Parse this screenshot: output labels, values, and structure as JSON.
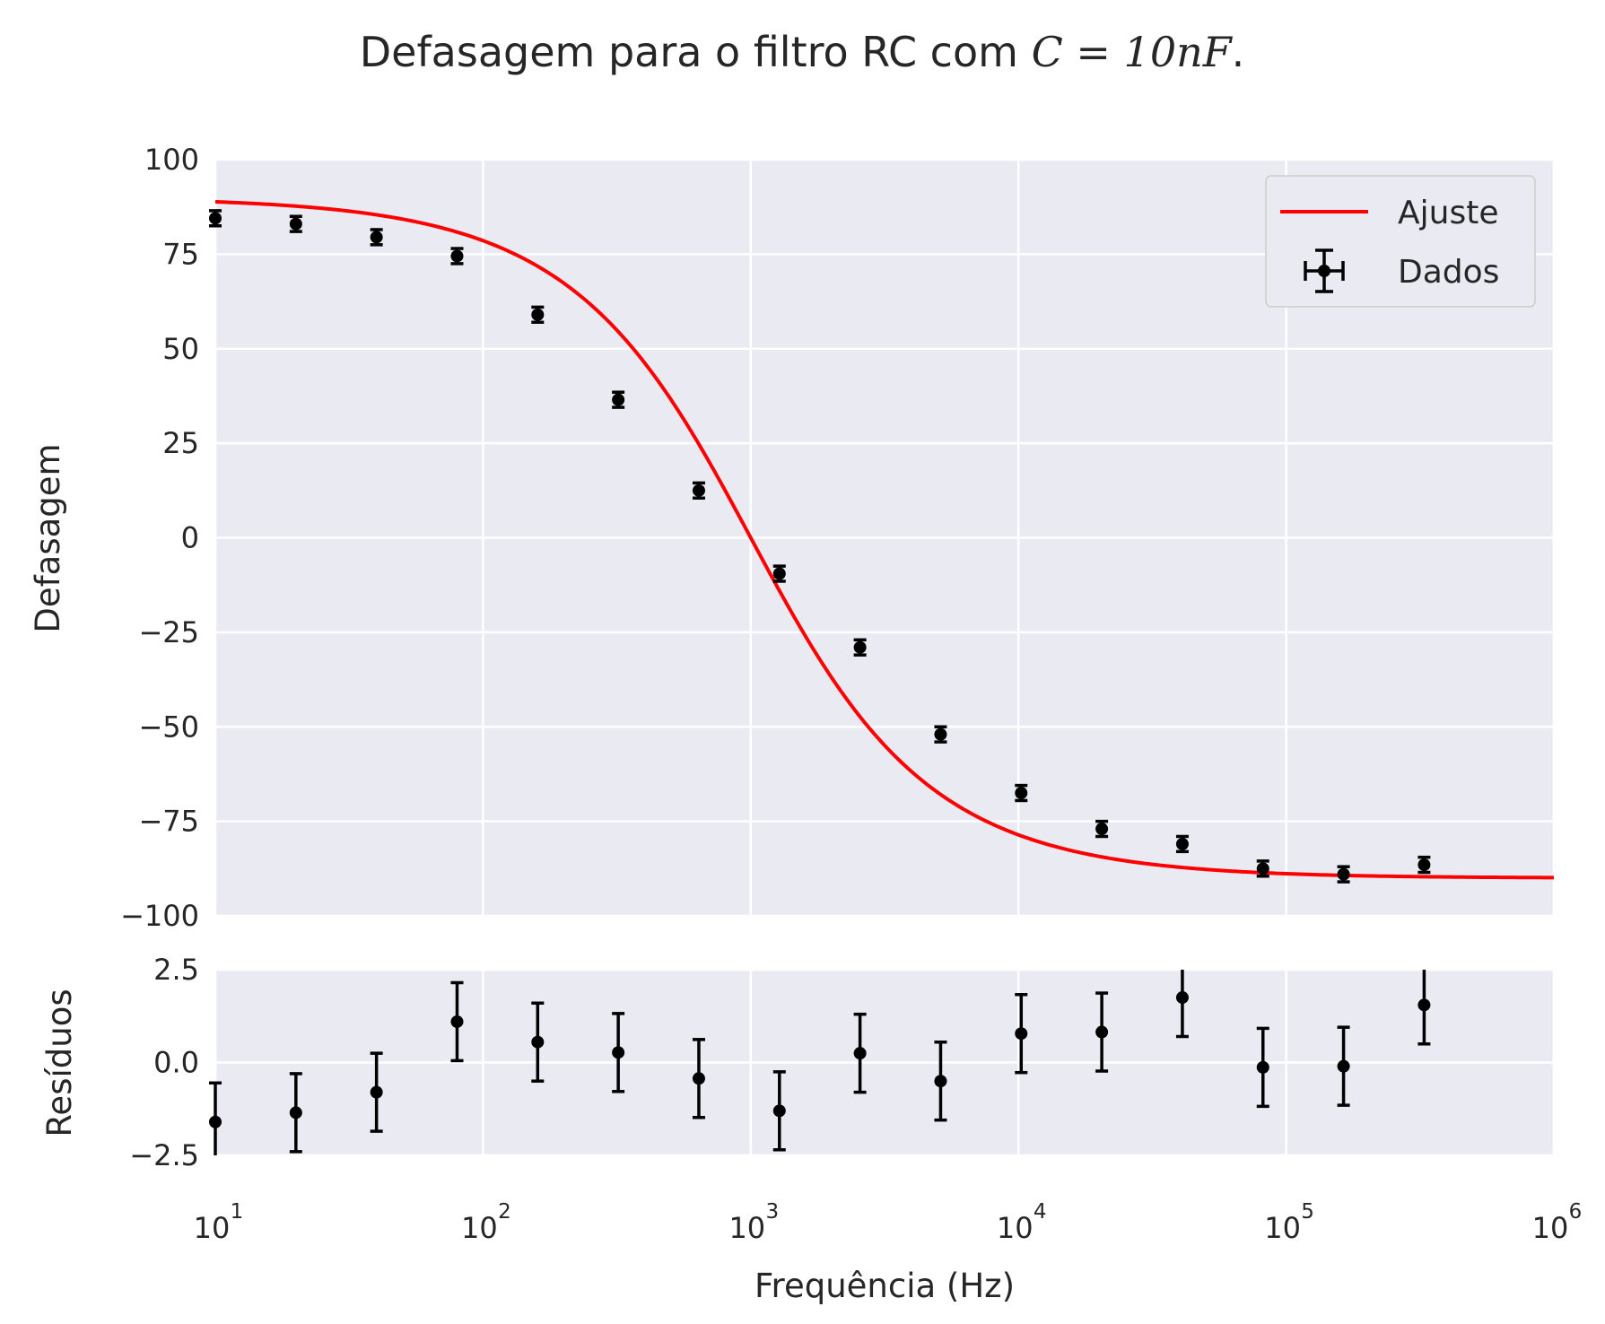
{
  "chart_data": [
    {
      "type": "scatter",
      "title_text": "Defasagem para o filtro RC com ",
      "title_math": "C = 10nF",
      "title_end": ".",
      "xlabel": "",
      "ylabel": "Defasagem",
      "xscale": "log",
      "xlim": [
        10,
        1000000
      ],
      "ylim": [
        -100,
        100
      ],
      "yticks": [
        "100",
        "75",
        "50",
        "25",
        "0",
        "−25",
        "−50",
        "−75",
        "−100"
      ],
      "ytick_values": [
        100,
        75,
        50,
        25,
        0,
        -25,
        -50,
        -75,
        -100
      ],
      "grid": true,
      "legend_position": "top-right",
      "series": [
        {
          "name": "Ajuste",
          "kind": "line",
          "color": "#ff0000",
          "model": "phase = atan(f0 / f) - 45 deg offset curve from +90 to -90",
          "f0_hz": 1000,
          "upper_deg": 90,
          "lower_deg": -90
        },
        {
          "name": "Dados",
          "kind": "errorbar",
          "color": "#000000",
          "x": [
            10,
            20,
            40,
            80,
            160,
            320,
            640,
            1280,
            2560,
            5120,
            10240,
            20480,
            40960,
            81920,
            163840,
            327680
          ],
          "y": [
            84.5,
            83,
            79.5,
            74.5,
            59,
            36.5,
            12.5,
            -9.5,
            -29,
            -52,
            -67.5,
            -77,
            -81,
            -87.5,
            -89,
            -86.5
          ],
          "yerr": [
            2,
            2,
            2,
            2,
            2,
            2,
            2,
            2,
            2,
            2,
            2,
            2,
            2,
            2,
            2,
            2
          ]
        }
      ]
    },
    {
      "type": "scatter",
      "xlabel": "Frequência (Hz)",
      "ylabel": "Resíduos",
      "xscale": "log",
      "xlim": [
        10,
        1000000
      ],
      "ylim": [
        -2.5,
        2.5
      ],
      "yticks": [
        "2.5",
        "0.0",
        "−2.5"
      ],
      "ytick_values": [
        2.5,
        0,
        -2.5
      ],
      "xtick_mantissa": [
        "10",
        "10",
        "10",
        "10",
        "10",
        "10"
      ],
      "xtick_exponent": [
        "1",
        "2",
        "3",
        "4",
        "5",
        "6"
      ],
      "xtick_values": [
        10,
        100,
        1000,
        10000,
        100000,
        1000000
      ],
      "grid": true,
      "series": [
        {
          "kind": "errorbar",
          "color": "#000000",
          "x": [
            10,
            20,
            40,
            80,
            160,
            320,
            640,
            1280,
            2560,
            5120,
            10240,
            20480,
            40960,
            81920,
            163840,
            327680
          ],
          "y": [
            -1.6,
            -1.35,
            -0.8,
            1.1,
            0.55,
            0.27,
            -0.43,
            -1.3,
            0.25,
            -0.5,
            0.78,
            0.82,
            1.75,
            -0.13,
            -0.1,
            1.55
          ],
          "yerr": [
            1.05,
            1.05,
            1.05,
            1.05,
            1.05,
            1.05,
            1.05,
            1.05,
            1.05,
            1.05,
            1.05,
            1.05,
            1.05,
            1.05,
            1.05,
            1.05
          ]
        }
      ]
    }
  ],
  "colors": {
    "plot_background": "#eaeaf2",
    "grid": "#ffffff",
    "fit_line": "#ff0000",
    "markers": "#000000",
    "text": "#262626"
  }
}
